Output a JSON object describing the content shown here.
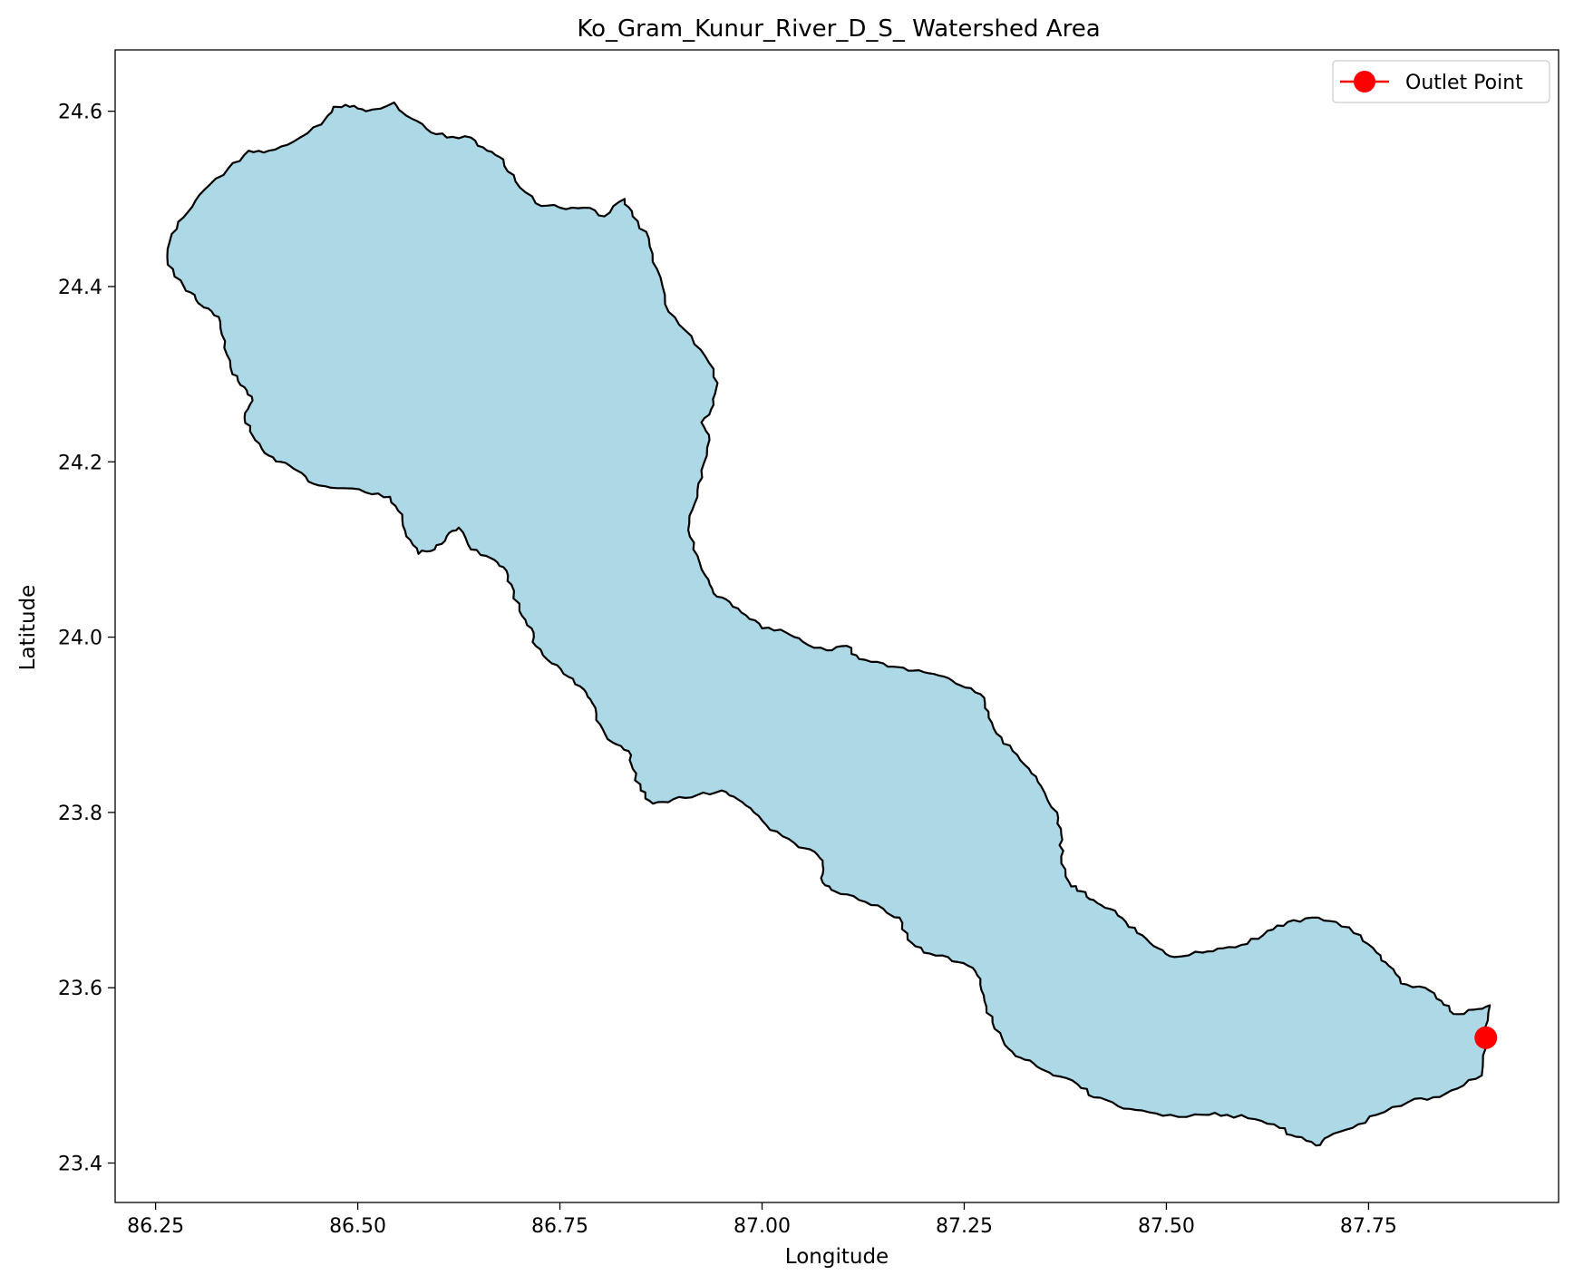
{
  "chart_data": {
    "type": "map",
    "title": "Ko_Gram_Kunur_River_D_S_ Watershed Area",
    "xlabel": "Longitude",
    "ylabel": "Latitude",
    "xlim": [
      86.2,
      87.985
    ],
    "ylim": [
      23.355,
      24.67
    ],
    "x_ticks": [
      {
        "value": 86.25,
        "label": "86.25"
      },
      {
        "value": 86.5,
        "label": "86.50"
      },
      {
        "value": 86.75,
        "label": "86.75"
      },
      {
        "value": 87.0,
        "label": "87.00"
      },
      {
        "value": 87.25,
        "label": "87.25"
      },
      {
        "value": 87.5,
        "label": "87.50"
      },
      {
        "value": 87.75,
        "label": "87.75"
      }
    ],
    "y_ticks": [
      {
        "value": 23.4,
        "label": "23.4"
      },
      {
        "value": 23.6,
        "label": "23.6"
      },
      {
        "value": 23.8,
        "label": "23.8"
      },
      {
        "value": 24.0,
        "label": "24.0"
      },
      {
        "value": 24.2,
        "label": "24.2"
      },
      {
        "value": 24.4,
        "label": "24.4"
      },
      {
        "value": 24.6,
        "label": "24.6"
      }
    ],
    "grid": false,
    "legend": {
      "position": "top-right",
      "entries": [
        {
          "label": "Outlet Point",
          "color": "#ff0000",
          "marker": "circle"
        }
      ]
    },
    "watershed": {
      "fill": "#add8e6",
      "edge": "#000000",
      "boundary": [
        [
          86.265,
          24.425
        ],
        [
          86.27,
          24.46
        ],
        [
          86.29,
          24.485
        ],
        [
          86.31,
          24.51
        ],
        [
          86.34,
          24.535
        ],
        [
          86.365,
          24.555
        ],
        [
          86.39,
          24.555
        ],
        [
          86.42,
          24.565
        ],
        [
          86.455,
          24.585
        ],
        [
          86.47,
          24.605
        ],
        [
          86.49,
          24.605
        ],
        [
          86.51,
          24.6
        ],
        [
          86.545,
          24.61
        ],
        [
          86.56,
          24.595
        ],
        [
          86.585,
          24.58
        ],
        [
          86.61,
          24.57
        ],
        [
          86.64,
          24.57
        ],
        [
          86.66,
          24.555
        ],
        [
          86.68,
          24.545
        ],
        [
          86.695,
          24.52
        ],
        [
          86.72,
          24.495
        ],
        [
          86.75,
          24.49
        ],
        [
          86.78,
          24.49
        ],
        [
          86.805,
          24.48
        ],
        [
          86.83,
          24.5
        ],
        [
          86.84,
          24.48
        ],
        [
          86.86,
          24.455
        ],
        [
          86.87,
          24.42
        ],
        [
          86.88,
          24.38
        ],
        [
          86.905,
          24.35
        ],
        [
          86.93,
          24.32
        ],
        [
          86.945,
          24.29
        ],
        [
          86.94,
          24.265
        ],
        [
          86.925,
          24.245
        ],
        [
          86.935,
          24.225
        ],
        [
          86.925,
          24.19
        ],
        [
          86.92,
          24.16
        ],
        [
          86.91,
          24.13
        ],
        [
          86.915,
          24.1
        ],
        [
          86.93,
          24.07
        ],
        [
          86.94,
          24.05
        ],
        [
          86.96,
          24.04
        ],
        [
          86.98,
          24.025
        ],
        [
          87.0,
          24.01
        ],
        [
          87.03,
          24.005
        ],
        [
          87.05,
          23.995
        ],
        [
          87.08,
          23.985
        ],
        [
          87.105,
          23.99
        ],
        [
          87.12,
          23.975
        ],
        [
          87.15,
          23.97
        ],
        [
          87.175,
          23.965
        ],
        [
          87.2,
          23.96
        ],
        [
          87.225,
          23.955
        ],
        [
          87.245,
          23.945
        ],
        [
          87.27,
          23.935
        ],
        [
          87.28,
          23.915
        ],
        [
          87.29,
          23.89
        ],
        [
          87.31,
          23.87
        ],
        [
          87.33,
          23.85
        ],
        [
          87.345,
          23.83
        ],
        [
          87.365,
          23.8
        ],
        [
          87.37,
          23.775
        ],
        [
          87.37,
          23.75
        ],
        [
          87.38,
          23.72
        ],
        [
          87.395,
          23.71
        ],
        [
          87.41,
          23.7
        ],
        [
          87.43,
          23.69
        ],
        [
          87.45,
          23.675
        ],
        [
          87.47,
          23.66
        ],
        [
          87.49,
          23.645
        ],
        [
          87.51,
          23.635
        ],
        [
          87.545,
          23.64
        ],
        [
          87.57,
          23.645
        ],
        [
          87.6,
          23.65
        ],
        [
          87.625,
          23.665
        ],
        [
          87.65,
          23.675
        ],
        [
          87.68,
          23.68
        ],
        [
          87.71,
          23.675
        ],
        [
          87.74,
          23.66
        ],
        [
          87.76,
          23.64
        ],
        [
          87.775,
          23.625
        ],
        [
          87.79,
          23.605
        ],
        [
          87.82,
          23.6
        ],
        [
          87.84,
          23.585
        ],
        [
          87.855,
          23.57
        ],
        [
          87.88,
          23.575
        ],
        [
          87.9,
          23.58
        ],
        [
          87.895,
          23.545
        ],
        [
          87.89,
          23.5
        ],
        [
          87.86,
          23.485
        ],
        [
          87.83,
          23.475
        ],
        [
          87.8,
          23.47
        ],
        [
          87.76,
          23.455
        ],
        [
          87.73,
          23.44
        ],
        [
          87.7,
          23.43
        ],
        [
          87.685,
          23.42
        ],
        [
          87.66,
          23.43
        ],
        [
          87.64,
          23.44
        ],
        [
          87.61,
          23.45
        ],
        [
          87.575,
          23.455
        ],
        [
          87.545,
          23.455
        ],
        [
          87.505,
          23.455
        ],
        [
          87.47,
          23.46
        ],
        [
          87.44,
          23.465
        ],
        [
          87.41,
          23.475
        ],
        [
          87.39,
          23.49
        ],
        [
          87.36,
          23.5
        ],
        [
          87.34,
          23.51
        ],
        [
          87.32,
          23.52
        ],
        [
          87.3,
          23.535
        ],
        [
          87.285,
          23.56
        ],
        [
          87.275,
          23.585
        ],
        [
          87.27,
          23.61
        ],
        [
          87.255,
          23.625
        ],
        [
          87.23,
          23.635
        ],
        [
          87.2,
          23.64
        ],
        [
          87.18,
          23.655
        ],
        [
          87.17,
          23.68
        ],
        [
          87.15,
          23.69
        ],
        [
          87.12,
          23.7
        ],
        [
          87.09,
          23.71
        ],
        [
          87.075,
          23.72
        ],
        [
          87.075,
          23.74
        ],
        [
          87.065,
          23.755
        ],
        [
          87.04,
          23.765
        ],
        [
          87.01,
          23.78
        ],
        [
          86.99,
          23.8
        ],
        [
          86.97,
          23.815
        ],
        [
          86.95,
          23.825
        ],
        [
          86.92,
          23.82
        ],
        [
          86.89,
          23.815
        ],
        [
          86.865,
          23.81
        ],
        [
          86.85,
          23.825
        ],
        [
          86.84,
          23.85
        ],
        [
          86.835,
          23.87
        ],
        [
          86.815,
          23.88
        ],
        [
          86.8,
          23.9
        ],
        [
          86.79,
          23.925
        ],
        [
          86.78,
          23.94
        ],
        [
          86.76,
          23.955
        ],
        [
          86.74,
          23.97
        ],
        [
          86.72,
          23.99
        ],
        [
          86.715,
          24.01
        ],
        [
          86.7,
          24.03
        ],
        [
          86.69,
          24.06
        ],
        [
          86.68,
          24.08
        ],
        [
          86.665,
          24.09
        ],
        [
          86.64,
          24.1
        ],
        [
          86.625,
          24.125
        ],
        [
          86.61,
          24.115
        ],
        [
          86.595,
          24.1
        ],
        [
          86.575,
          24.095
        ],
        [
          86.56,
          24.115
        ],
        [
          86.555,
          24.14
        ],
        [
          86.54,
          24.16
        ],
        [
          86.51,
          24.165
        ],
        [
          86.475,
          24.17
        ],
        [
          86.445,
          24.175
        ],
        [
          86.425,
          24.19
        ],
        [
          86.405,
          24.2
        ],
        [
          86.385,
          24.21
        ],
        [
          86.37,
          24.23
        ],
        [
          86.36,
          24.25
        ],
        [
          86.37,
          24.27
        ],
        [
          86.36,
          24.285
        ],
        [
          86.345,
          24.3
        ],
        [
          86.335,
          24.33
        ],
        [
          86.33,
          24.36
        ],
        [
          86.315,
          24.375
        ],
        [
          86.3,
          24.385
        ],
        [
          86.285,
          24.4
        ],
        [
          86.265,
          24.425
        ]
      ]
    },
    "outlet_point": {
      "label": "Outlet Point",
      "lon": 87.895,
      "lat": 23.543,
      "color": "#ff0000"
    }
  }
}
